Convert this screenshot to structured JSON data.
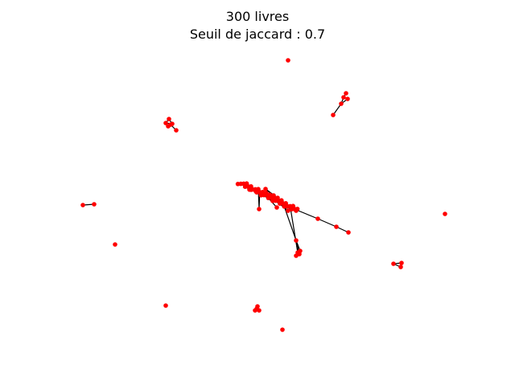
{
  "title": {
    "line1": "300 livres",
    "line2": "Seuil de jaccard : 0.7"
  },
  "colors": {
    "node": "#ff0000",
    "edge": "#000000",
    "background": "#ffffff"
  }
}
